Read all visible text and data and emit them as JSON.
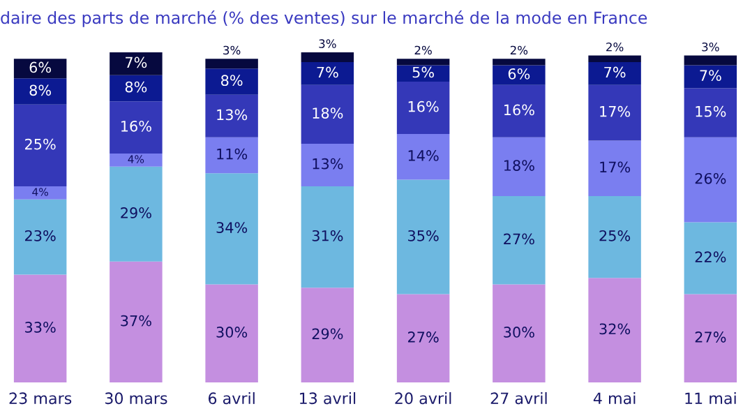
{
  "chart_data": {
    "type": "bar",
    "stacked": true,
    "title": "daire des parts de marché (% des ventes) sur le marché de la mode en France",
    "categories": [
      "23 mars",
      "30 mars",
      "6 avril",
      "13 avril",
      "20 avril",
      "27 avril",
      "4 mai",
      "11 mai"
    ],
    "series": [
      {
        "color": "#c48fe0",
        "values": [
          33,
          37,
          30,
          29,
          27,
          30,
          32,
          27
        ],
        "value_labels": [
          "33%",
          "37%",
          "30%",
          "29%",
          "27%",
          "30%",
          "32%",
          "27%"
        ]
      },
      {
        "color": "#6db8e0",
        "values": [
          23,
          29,
          34,
          31,
          35,
          27,
          25,
          22
        ],
        "value_labels": [
          "23%",
          "29%",
          "34%",
          "31%",
          "35%",
          "27%",
          "25%",
          "22%"
        ]
      },
      {
        "color": "#7a7ef0",
        "values": [
          4,
          4,
          11,
          13,
          14,
          18,
          17,
          26
        ],
        "value_labels": [
          "4%",
          "4%",
          "11%",
          "13%",
          "14%",
          "18%",
          "17%",
          "26%"
        ]
      },
      {
        "color": "#3438b8",
        "values": [
          25,
          16,
          13,
          18,
          16,
          16,
          17,
          15
        ],
        "value_labels": [
          "25%",
          "16%",
          "13%",
          "18%",
          "16%",
          "16%",
          "17%",
          "15%"
        ]
      },
      {
        "color": "#0c1a92",
        "values": [
          8,
          8,
          8,
          7,
          5,
          6,
          7,
          7
        ],
        "value_labels": [
          "8%",
          "8%",
          "8%",
          "7%",
          "5%",
          "6%",
          "7%",
          "7%"
        ]
      },
      {
        "color": "#06093f",
        "values": [
          6,
          7,
          3,
          3,
          2,
          2,
          2,
          3
        ],
        "value_labels": [
          "6%",
          "7%",
          "3%",
          "3%",
          "2%",
          "2%",
          "2%",
          "3%"
        ]
      }
    ],
    "legend": false
  }
}
